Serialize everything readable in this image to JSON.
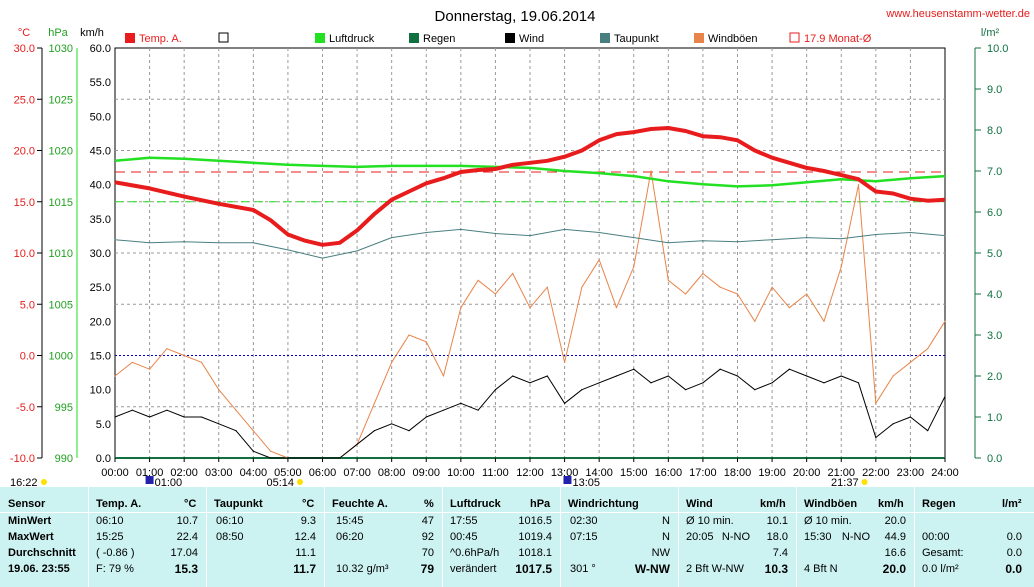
{
  "title": "Donnerstag, 19.06.2014",
  "site": "www.heusenstamm-wetter.de",
  "axes": {
    "temp_unit": "°C",
    "pressure_unit": "hPa",
    "speed_unit": "km/h",
    "rain_unit": "l/m²",
    "temp_ticks": [
      "30.0",
      "25.0",
      "20.0",
      "15.0",
      "10.0",
      "5.0",
      "0.0",
      "-5.0",
      "-10.0"
    ],
    "pressure_ticks": [
      "1030",
      "1025",
      "1020",
      "1015",
      "1010",
      "1005",
      "1000",
      "995",
      "990"
    ],
    "speed_ticks": [
      "60.0",
      "55.0",
      "50.0",
      "45.0",
      "40.0",
      "35.0",
      "30.0",
      "25.0",
      "20.0",
      "15.0",
      "10.0",
      "5.0",
      "0.0"
    ],
    "rain_ticks": [
      "10.0",
      "9.0",
      "8.0",
      "7.0",
      "6.0",
      "5.0",
      "4.0",
      "3.0",
      "2.0",
      "1.0",
      "0.0"
    ],
    "time_ticks": [
      "00:00",
      "01:00",
      "02:00",
      "03:00",
      "04:00",
      "05:00",
      "06:00",
      "07:00",
      "08:00",
      "09:00",
      "10:00",
      "11:00",
      "12:00",
      "13:00",
      "14:00",
      "15:00",
      "16:00",
      "17:00",
      "18:00",
      "19:00",
      "20:00",
      "21:00",
      "22:00",
      "23:00",
      "24:00"
    ]
  },
  "legend": [
    {
      "label": "Temp. A.",
      "color": "#e81c1c"
    },
    {
      "label": "",
      "color": "#ffffff"
    },
    {
      "label": "Luftdruck",
      "color": "#22e022"
    },
    {
      "label": "Regen",
      "color": "#107040"
    },
    {
      "label": "Wind",
      "color": "#000000"
    },
    {
      "label": "Taupunkt",
      "color": "#4a7f80"
    },
    {
      "label": "Windböen",
      "color": "#e8844a"
    },
    {
      "label": "17.9 Monat-Ø",
      "color": "#e81c1c"
    }
  ],
  "markers": {
    "sunrise_time": "05:14",
    "sunset_time": "21:37",
    "left_time": "16:22",
    "moon1": "01:00",
    "moon2": "13:05"
  },
  "chart_data": {
    "type": "line",
    "title": "Donnerstag, 19.06.2014",
    "x_range_hours": [
      0,
      24
    ],
    "month_avg_temp": 17.9,
    "series": [
      {
        "name": "Temp. A.",
        "axis": "°C",
        "color": "#e81c1c",
        "x": [
          0,
          1,
          2,
          3,
          4,
          4.5,
          5,
          5.5,
          6,
          6.5,
          7,
          7.5,
          8,
          8.5,
          9,
          9.5,
          10,
          10.5,
          11,
          11.5,
          12,
          12.5,
          13,
          13.5,
          14,
          14.5,
          15,
          15.5,
          16,
          16.5,
          17,
          17.5,
          18,
          18.5,
          19,
          19.5,
          20,
          20.5,
          21,
          21.5,
          22,
          22.5,
          23,
          23.5,
          24
        ],
        "values": [
          16.9,
          16.3,
          15.5,
          14.8,
          14.2,
          13.2,
          11.8,
          11.2,
          10.8,
          11.0,
          12.2,
          13.8,
          15.2,
          16.0,
          16.8,
          17.3,
          17.9,
          18.1,
          18.2,
          18.6,
          18.8,
          19.0,
          19.4,
          20.0,
          21.0,
          21.6,
          21.8,
          22.1,
          22.2,
          21.9,
          21.4,
          21.3,
          21.0,
          20.0,
          19.3,
          18.8,
          18.3,
          18.0,
          17.6,
          17.2,
          16.0,
          15.8,
          15.3,
          15.1,
          15.2
        ]
      },
      {
        "name": "Luftdruck",
        "axis": "hPa",
        "color": "#22e022",
        "x": [
          0,
          1,
          2,
          3,
          4,
          5,
          6,
          7,
          8,
          9,
          10,
          11,
          12,
          13,
          14,
          15,
          16,
          17,
          18,
          19,
          20,
          21,
          22,
          23,
          24
        ],
        "values": [
          1019.0,
          1019.3,
          1019.2,
          1019.0,
          1018.8,
          1018.6,
          1018.5,
          1018.4,
          1018.5,
          1018.5,
          1018.5,
          1018.4,
          1018.3,
          1018.0,
          1017.8,
          1017.5,
          1017.0,
          1016.7,
          1016.5,
          1016.6,
          1016.9,
          1017.2,
          1017.0,
          1017.3,
          1017.5
        ]
      },
      {
        "name": "Taupunkt",
        "axis": "°C",
        "color": "#4a7f80",
        "x": [
          0,
          1,
          2,
          3,
          4,
          5,
          6,
          7,
          8,
          9,
          10,
          11,
          12,
          13,
          14,
          15,
          16,
          17,
          18,
          19,
          20,
          21,
          22,
          23,
          24
        ],
        "values": [
          11.3,
          11.0,
          11.1,
          11.0,
          11.0,
          10.3,
          9.5,
          10.2,
          11.5,
          12.0,
          12.3,
          11.9,
          11.7,
          12.3,
          12.0,
          11.5,
          11.0,
          11.2,
          11.1,
          11.3,
          11.5,
          11.4,
          11.8,
          12.0,
          11.7
        ]
      },
      {
        "name": "Wind",
        "axis": "km/h",
        "color": "#000000",
        "x": [
          0,
          0.5,
          1,
          1.5,
          2,
          2.5,
          3,
          3.5,
          4,
          4.5,
          5,
          5.5,
          6,
          6.5,
          7,
          7.5,
          8,
          8.5,
          9,
          9.5,
          10,
          10.5,
          11,
          11.5,
          12,
          12.5,
          13,
          13.5,
          14,
          14.5,
          15,
          15.5,
          16,
          16.5,
          17,
          17.5,
          18,
          18.5,
          19,
          19.5,
          20,
          20.5,
          21,
          21.5,
          22,
          22.5,
          23,
          23.5,
          24
        ],
        "values": [
          6,
          7,
          6,
          7,
          6,
          6,
          5,
          4,
          1,
          0,
          0,
          0,
          0,
          0,
          2,
          4,
          5,
          4,
          6,
          7,
          8,
          7,
          10,
          12,
          11,
          12,
          8,
          10,
          11,
          12,
          13,
          11,
          12,
          10,
          11,
          13,
          12,
          10,
          11,
          13,
          12,
          11,
          12,
          11,
          3,
          5,
          6,
          4,
          9
        ]
      },
      {
        "name": "Windböen",
        "axis": "km/h",
        "color": "#e8844a",
        "x": [
          0,
          0.5,
          1,
          1.5,
          2,
          2.5,
          3,
          3.5,
          4,
          4.5,
          5,
          5.5,
          6,
          6.5,
          7,
          7.5,
          8,
          8.5,
          9,
          9.5,
          10,
          10.5,
          11,
          11.5,
          12,
          12.5,
          13,
          13.5,
          14,
          14.5,
          15,
          15.5,
          16,
          16.5,
          17,
          17.5,
          18,
          18.5,
          19,
          19.5,
          20,
          20.5,
          21,
          21.5,
          22,
          22.5,
          23,
          23.5,
          24
        ],
        "values": [
          12,
          14,
          13,
          16,
          15,
          14,
          10,
          7,
          4,
          1,
          0,
          0,
          0,
          0,
          2,
          8,
          14,
          18,
          17,
          12,
          22,
          26,
          24,
          27,
          22,
          25,
          14,
          25,
          29,
          22,
          28,
          42,
          26,
          24,
          27,
          25,
          24,
          20,
          25,
          22,
          24,
          20,
          28,
          40,
          8,
          12,
          14,
          16,
          20
        ]
      }
    ]
  },
  "table": {
    "headers": {
      "sensor": "Sensor",
      "temp": "Temp. A.",
      "temp_u": "°C",
      "dew": "Taupunkt",
      "dew_u": "°C",
      "hum": "Feuchte A.",
      "hum_u": "%",
      "press": "Luftdruck",
      "press_u": "hPa",
      "dir": "Windrichtung",
      "wind": "Wind",
      "wind_u": "km/h",
      "gust": "Windböen",
      "gust_u": "km/h",
      "rain": "Regen",
      "rain_u": "l/m²"
    },
    "rows": [
      {
        "label": "MinWert",
        "temp_t": "06:10",
        "temp_v": "10.7",
        "dew_t": "06:10",
        "dew_v": "9.3",
        "hum_t": "15:45",
        "hum_v": "47",
        "press_t": "17:55",
        "press_v": "1016.5",
        "dir_t": "02:30",
        "dir_v": "N",
        "wind_t": "Ø 10 min.",
        "wind_v": "10.1",
        "gust_t": "Ø 10 min.",
        "gust_v": "20.0",
        "rain_t": "",
        "rain_v": ""
      },
      {
        "label": "MaxWert",
        "temp_t": "15:25",
        "temp_v": "22.4",
        "dew_t": "08:50",
        "dew_v": "12.4",
        "hum_t": "06:20",
        "hum_v": "92",
        "press_t": "00:45",
        "press_v": "1019.4",
        "dir_t": "07:15",
        "dir_v": "N",
        "wind_t": "20:05",
        "wind_d": "N-NO",
        "wind_v": "18.0",
        "gust_t": "15:30",
        "gust_d": "N-NO",
        "gust_v": "44.9",
        "rain_t": "00:00",
        "rain_v": "0.0"
      },
      {
        "label": "Durchschnitt",
        "temp_t": "( -0.86 )",
        "temp_v": "17.04",
        "dew_t": "",
        "dew_v": "11.1",
        "hum_t": "",
        "hum_v": "70",
        "press_t": "^0.6hPa/h",
        "press_v": "1018.1",
        "dir_t": "",
        "dir_v": "NW",
        "wind_t": "",
        "wind_v": "7.4",
        "gust_t": "",
        "gust_v": "16.6",
        "rain_t": "Gesamt:",
        "rain_v": "0.0"
      },
      {
        "label": "19.06. 23:55",
        "temp_t": "F: 79 %",
        "temp_v": "15.3",
        "dew_t": "",
        "dew_v": "11.7",
        "hum_t": "10.32 g/m³",
        "hum_v": "79",
        "press_t": "verändert",
        "press_v": "1017.5",
        "dir_t": "301 °",
        "dir_v": "W-NW",
        "wind_t": "2 Bft W-NW",
        "wind_v": "10.3",
        "gust_t": "4 Bft N",
        "gust_v": "20.0",
        "rain_t": "0.0 l/m²",
        "rain_v": "0.0"
      }
    ]
  }
}
